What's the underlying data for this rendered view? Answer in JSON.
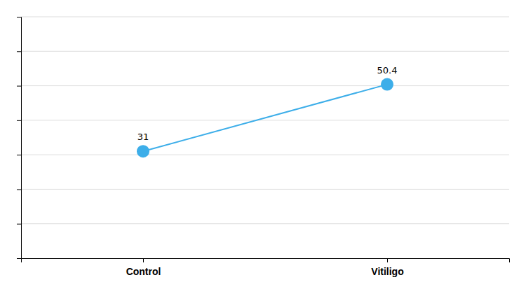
{
  "chart_data": {
    "type": "line",
    "categories": [
      "Control",
      "Vitiligo"
    ],
    "values": [
      31,
      50.4
    ],
    "color": "#3DAEE9",
    "marker": "circle",
    "ylim": [
      0,
      70
    ],
    "yticks": [
      10,
      20,
      30,
      40,
      50,
      60,
      70
    ],
    "grid": true,
    "tick_labels": "x",
    "data_labels": true
  }
}
